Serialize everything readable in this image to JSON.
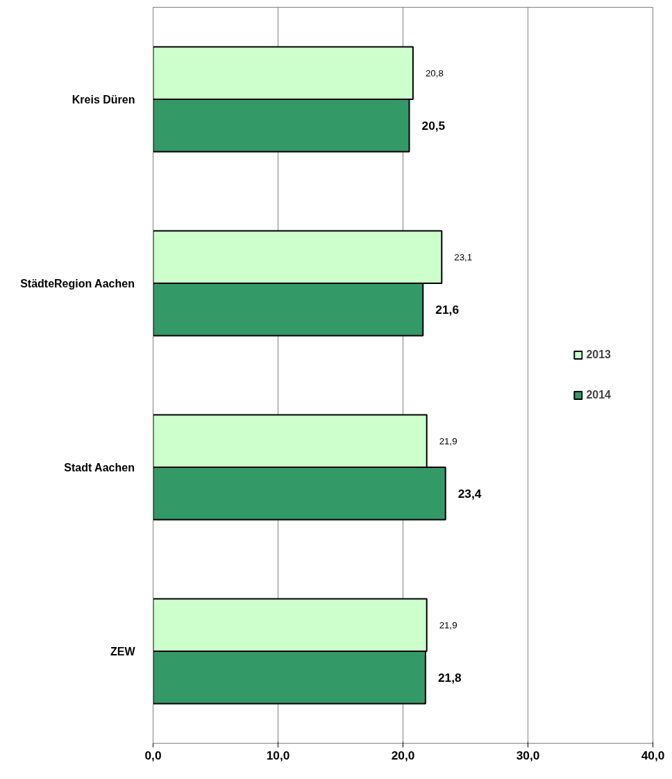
{
  "chart_data": {
    "type": "bar",
    "orientation": "horizontal",
    "categories": [
      "Kreis Düren",
      "StädteRegion Aachen",
      "Stadt Aachen",
      "ZEW"
    ],
    "series": [
      {
        "name": "2013",
        "color": "#ccffcc",
        "values": [
          20.8,
          23.1,
          21.9,
          21.9
        ],
        "value_labels": [
          "20,8",
          "23,1",
          "21,9",
          "21,9"
        ]
      },
      {
        "name": "2014",
        "color": "#339966",
        "values": [
          20.5,
          21.6,
          23.4,
          21.8
        ],
        "value_labels": [
          "20,5",
          "21,6",
          "23,4",
          "21,8"
        ]
      }
    ],
    "xlim": [
      0,
      40
    ],
    "xticks": [
      {
        "value": 0,
        "label": "0,0"
      },
      {
        "value": 10,
        "label": "10,0"
      },
      {
        "value": 20,
        "label": "20,0"
      },
      {
        "value": 30,
        "label": "30,0"
      },
      {
        "value": 40,
        "label": "40,0"
      }
    ],
    "grid": "x",
    "legend": "right"
  }
}
